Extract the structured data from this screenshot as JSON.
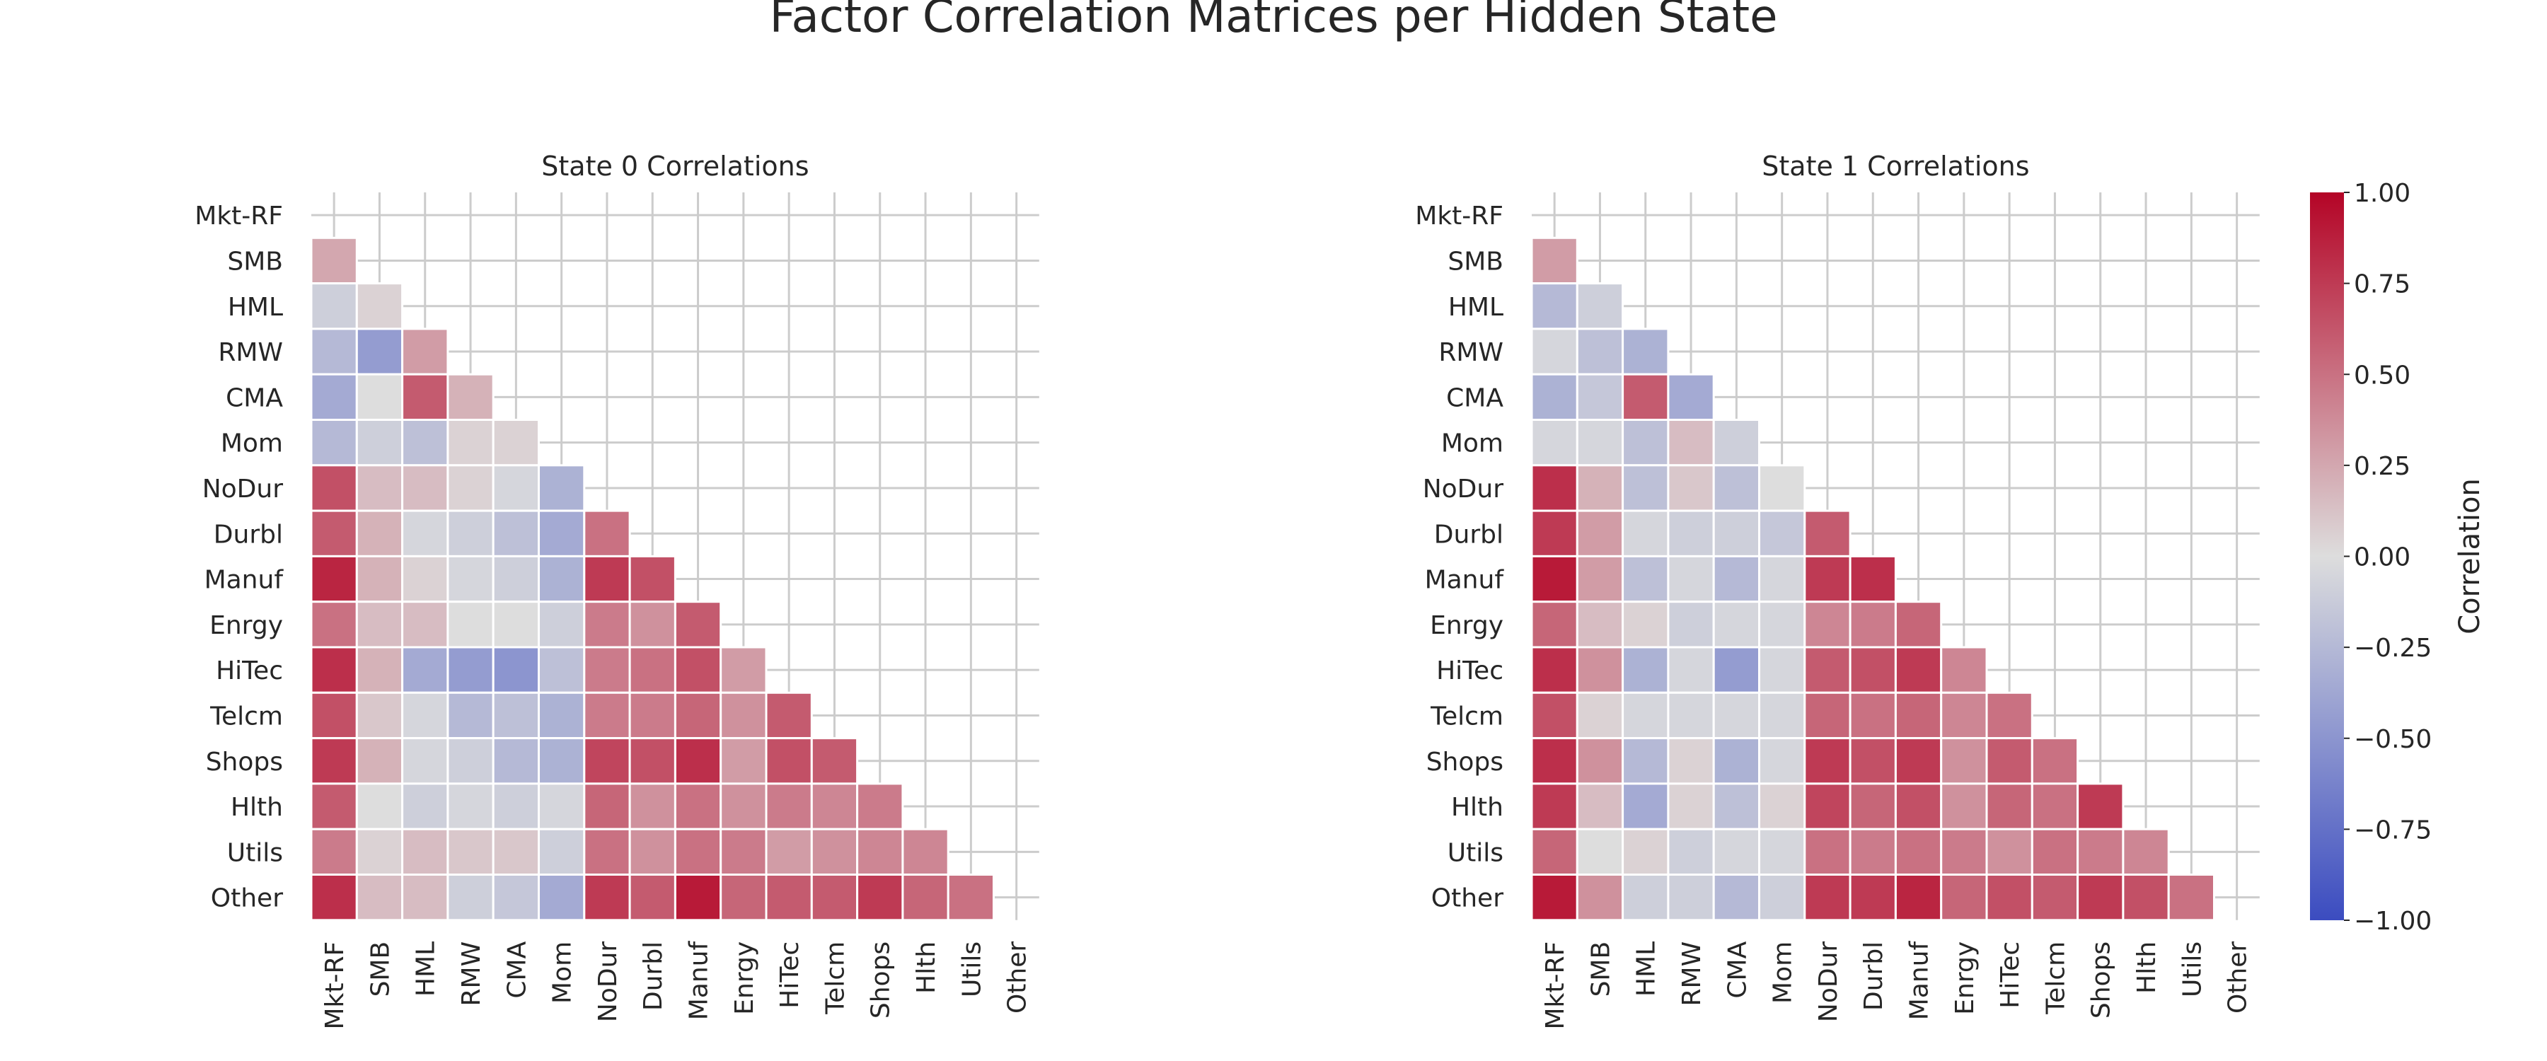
{
  "figure": {
    "title": "Factor Correlation Matrices per Hidden State"
  },
  "colorbar": {
    "label": "Correlation",
    "ticks": [
      "1.00",
      "0.75",
      "0.50",
      "0.25",
      "0.00",
      "−0.25",
      "−0.50",
      "−0.75",
      "−1.00"
    ],
    "vmin": -1.0,
    "vmax": 1.0,
    "colormap": "coolwarm",
    "colors": {
      "low": "#3b4cc0",
      "mid": "#dddddd",
      "high": "#b40426"
    }
  },
  "chart_data": [
    {
      "type": "heatmap",
      "title": "State 0 Correlations",
      "mask": "upper-triangle-including-diagonal",
      "labels": [
        "Mkt-RF",
        "SMB",
        "HML",
        "RMW",
        "CMA",
        "Mom",
        "NoDur",
        "Durbl",
        "Manuf",
        "Enrgy",
        "HiTec",
        "Telcm",
        "Shops",
        "Hlth",
        "Utils",
        "Other"
      ],
      "values": [
        [],
        [
          0.25
        ],
        [
          -0.1,
          0.05
        ],
        [
          -0.25,
          -0.45,
          0.3
        ],
        [
          -0.35,
          0.0,
          0.6,
          0.2
        ],
        [
          -0.25,
          -0.1,
          -0.2,
          0.05,
          0.05
        ],
        [
          0.65,
          0.15,
          0.15,
          0.05,
          -0.05,
          -0.3
        ],
        [
          0.6,
          0.2,
          -0.05,
          -0.1,
          -0.2,
          -0.35,
          0.5
        ],
        [
          0.85,
          0.2,
          0.05,
          -0.05,
          -0.1,
          -0.3,
          0.75,
          0.65
        ],
        [
          0.5,
          0.15,
          0.15,
          0.0,
          0.0,
          -0.1,
          0.45,
          0.35,
          0.6
        ],
        [
          0.8,
          0.2,
          -0.35,
          -0.45,
          -0.5,
          -0.2,
          0.45,
          0.5,
          0.65,
          0.3
        ],
        [
          0.65,
          0.1,
          -0.05,
          -0.25,
          -0.2,
          -0.3,
          0.45,
          0.45,
          0.55,
          0.35,
          0.6
        ],
        [
          0.75,
          0.2,
          -0.05,
          -0.1,
          -0.25,
          -0.3,
          0.7,
          0.65,
          0.8,
          0.3,
          0.65,
          0.6
        ],
        [
          0.6,
          0.0,
          -0.1,
          -0.05,
          -0.1,
          -0.05,
          0.55,
          0.35,
          0.5,
          0.35,
          0.45,
          0.4,
          0.45
        ],
        [
          0.45,
          0.05,
          0.15,
          0.1,
          0.1,
          -0.1,
          0.5,
          0.35,
          0.5,
          0.45,
          0.3,
          0.35,
          0.4,
          0.4
        ],
        [
          0.8,
          0.15,
          0.15,
          -0.1,
          -0.15,
          -0.35,
          0.75,
          0.6,
          0.9,
          0.55,
          0.6,
          0.6,
          0.75,
          0.55,
          0.5
        ]
      ]
    },
    {
      "type": "heatmap",
      "title": "State 1 Correlations",
      "mask": "upper-triangle-including-diagonal",
      "labels": [
        "Mkt-RF",
        "SMB",
        "HML",
        "RMW",
        "CMA",
        "Mom",
        "NoDur",
        "Durbl",
        "Manuf",
        "Enrgy",
        "HiTec",
        "Telcm",
        "Shops",
        "Hlth",
        "Utils",
        "Other"
      ],
      "values": [
        [],
        [
          0.3
        ],
        [
          -0.25,
          -0.1
        ],
        [
          -0.05,
          -0.2,
          -0.3
        ],
        [
          -0.3,
          -0.15,
          0.6,
          -0.35
        ],
        [
          -0.05,
          -0.05,
          -0.2,
          0.15,
          -0.1
        ],
        [
          0.8,
          0.2,
          -0.2,
          0.1,
          -0.2,
          0.0
        ],
        [
          0.75,
          0.3,
          -0.05,
          -0.1,
          -0.1,
          -0.15,
          0.6
        ],
        [
          0.9,
          0.3,
          -0.2,
          -0.05,
          -0.25,
          -0.05,
          0.75,
          0.8
        ],
        [
          0.55,
          0.15,
          0.05,
          -0.1,
          -0.05,
          -0.05,
          0.4,
          0.45,
          0.55
        ],
        [
          0.8,
          0.35,
          -0.3,
          -0.05,
          -0.45,
          -0.05,
          0.6,
          0.65,
          0.75,
          0.4
        ],
        [
          0.65,
          0.05,
          -0.05,
          -0.05,
          -0.05,
          -0.05,
          0.55,
          0.5,
          0.55,
          0.4,
          0.5
        ],
        [
          0.8,
          0.35,
          -0.25,
          0.05,
          -0.3,
          -0.05,
          0.75,
          0.65,
          0.75,
          0.35,
          0.6,
          0.5
        ],
        [
          0.75,
          0.15,
          -0.35,
          0.05,
          -0.2,
          0.05,
          0.7,
          0.55,
          0.65,
          0.35,
          0.55,
          0.5,
          0.75
        ],
        [
          0.55,
          0.0,
          0.05,
          -0.1,
          -0.05,
          -0.05,
          0.5,
          0.45,
          0.5,
          0.45,
          0.35,
          0.5,
          0.45,
          0.4
        ],
        [
          0.9,
          0.35,
          -0.1,
          -0.1,
          -0.25,
          -0.1,
          0.75,
          0.75,
          0.85,
          0.55,
          0.65,
          0.6,
          0.75,
          0.65,
          0.5
        ]
      ]
    }
  ]
}
